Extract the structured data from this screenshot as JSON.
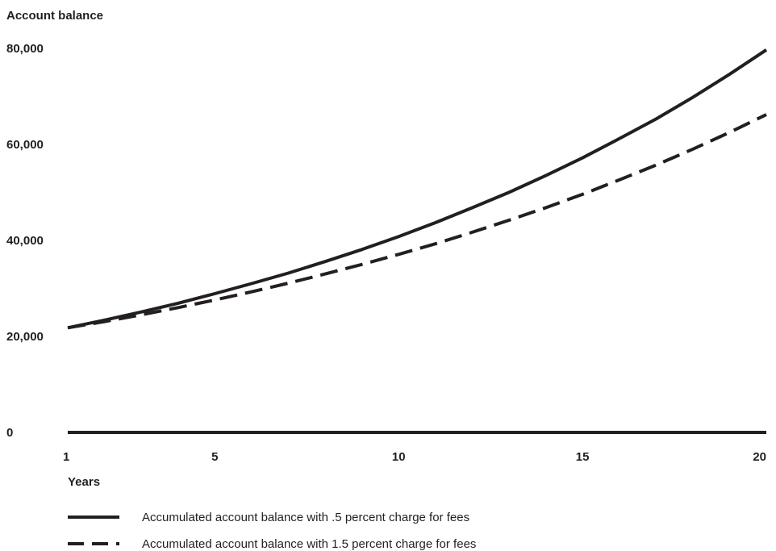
{
  "chart_data": {
    "type": "line",
    "ylabel": "Account balance",
    "xlabel": "Years",
    "xlim": [
      1,
      20
    ],
    "ylim": [
      0,
      80000
    ],
    "y_ticks": [
      0,
      20000,
      40000,
      60000,
      80000
    ],
    "y_tick_labels": [
      "0",
      "20,000",
      "40,000",
      "60,000",
      "80,000"
    ],
    "x_ticks": [
      1,
      5,
      10,
      15,
      20
    ],
    "x_tick_labels": [
      "1",
      "5",
      "10",
      "15",
      "20"
    ],
    "grid": false,
    "legend_position": "bottom-left",
    "x": [
      1,
      2,
      3,
      4,
      5,
      6,
      7,
      8,
      9,
      10,
      11,
      12,
      13,
      14,
      15,
      16,
      17,
      18,
      19,
      20
    ],
    "series": [
      {
        "name": "Accumulated account balance with .5 percent charge for fees",
        "style": "solid",
        "color": "#231f20",
        "values": [
          21800,
          23400,
          25100,
          26900,
          28900,
          31000,
          33200,
          35600,
          38100,
          40800,
          43700,
          46800,
          50000,
          53500,
          57200,
          61200,
          65300,
          69800,
          74600,
          79700
        ]
      },
      {
        "name": "Accumulated account balance with 1.5 percent charge for fees",
        "style": "dashed",
        "color": "#231f20",
        "values": [
          21800,
          23100,
          24500,
          26000,
          27600,
          29300,
          31100,
          33000,
          35000,
          37100,
          39300,
          41700,
          44200,
          46800,
          49600,
          52600,
          55700,
          59000,
          62500,
          66200
        ]
      }
    ]
  }
}
